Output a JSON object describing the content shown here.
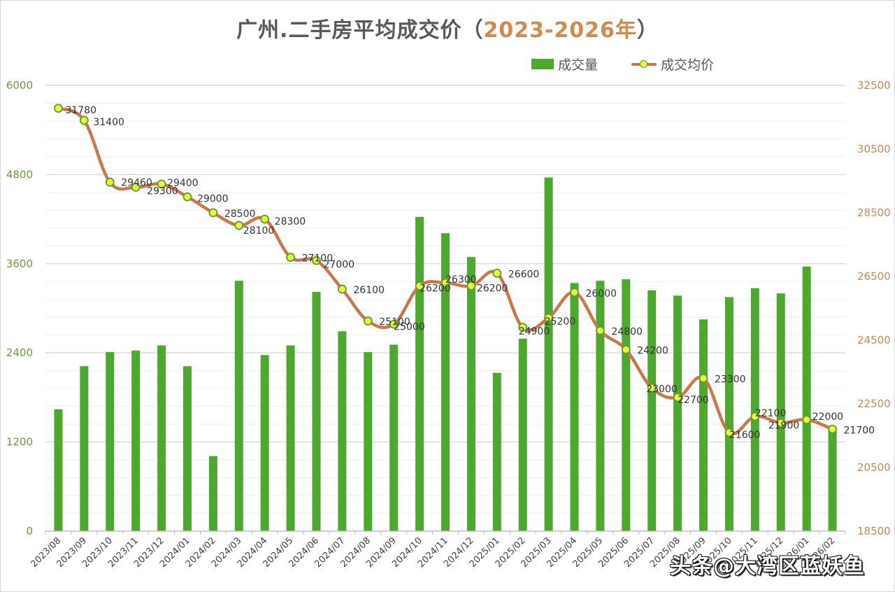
{
  "title": {
    "main": "广州.二手房平均成交价",
    "paren_open": "（",
    "years": "2023-2026年",
    "paren_close": "）"
  },
  "legend": {
    "bar_label": "成交量",
    "line_label": "成交均价"
  },
  "watermark": "头条@大湾区蓝妖鱼",
  "colors": {
    "bar": "#4ea72e",
    "line": "#c8784a",
    "marker_fill": "#e8f53a",
    "marker_stroke": "#5a9e2f",
    "left_axis": "#6a9a3f",
    "right_axis": "#c58a58",
    "title_accent": "#d08a4f"
  },
  "chart_data": {
    "type": "bar+line",
    "title": "广州.二手房平均成交价（2023-2026年）",
    "xlabel": "",
    "ylabel_left": "成交量",
    "ylabel_right": "成交均价",
    "ylim_left": [
      0,
      6000
    ],
    "yticks_left": [
      0,
      1200,
      2400,
      3600,
      4800,
      6000
    ],
    "ylim_right": [
      18500,
      32500
    ],
    "yticks_right": [
      18500,
      20500,
      22500,
      24500,
      26500,
      28500,
      30500,
      32500
    ],
    "legend_position": "top-right",
    "grid": true,
    "categories": [
      "2023/08",
      "2023/09",
      "2023/10",
      "2023/11",
      "2023/12",
      "2024/01",
      "2024/02",
      "2024/03",
      "2024/04",
      "2024/05",
      "2024/06",
      "2024/07",
      "2024/08",
      "2024/09",
      "2024/10",
      "2024/11",
      "2024/12",
      "2025/01",
      "2025/02",
      "2025/03",
      "2025/04",
      "2025/05",
      "2025/06",
      "2025/07",
      "2025/08",
      "2025/09",
      "2025/10",
      "2025/11",
      "2025/12",
      "2026/01",
      "2026/02"
    ],
    "series": [
      {
        "name": "成交量",
        "type": "bar",
        "axis": "left",
        "values": [
          1640,
          2220,
          2410,
          2430,
          2500,
          2220,
          1010,
          3370,
          2370,
          2500,
          3220,
          2690,
          2410,
          2510,
          4230,
          4010,
          3690,
          2130,
          2590,
          4760,
          3340,
          3370,
          3390,
          3240,
          3170,
          2850,
          3150,
          3270,
          3200,
          3560,
          1380
        ]
      },
      {
        "name": "成交均价",
        "type": "line",
        "axis": "right",
        "values": [
          31780,
          31400,
          29460,
          29300,
          29400,
          29000,
          28500,
          28100,
          28300,
          27100,
          27000,
          26100,
          25100,
          25000,
          26200,
          26300,
          26200,
          26600,
          24900,
          25200,
          26000,
          24800,
          24200,
          23000,
          22700,
          23300,
          21600,
          22100,
          21900,
          22000,
          21700
        ]
      }
    ]
  }
}
